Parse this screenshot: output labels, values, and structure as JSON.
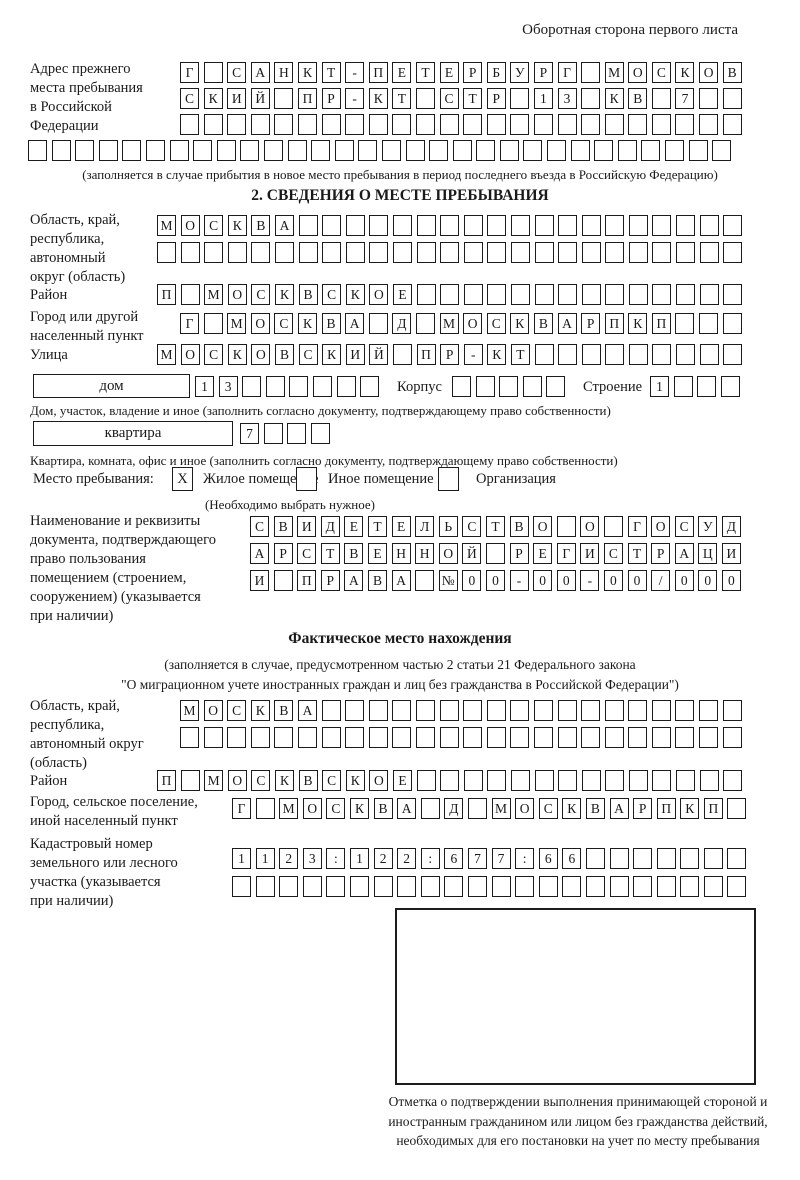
{
  "header": {
    "note": "Оборотная сторона первого листа"
  },
  "prev_address": {
    "label": "Адрес прежнего\nместа пребывания\nв Российской\nФедерации",
    "rows": [
      {
        "chars": "Г САНКТ-ПЕТЕРБУРГ МОСКОВ",
        "count": 24
      },
      {
        "chars": "СКИЙ ПР-КТ СТР 13 КВ 7",
        "count": 24
      },
      {
        "chars": "",
        "count": 24
      }
    ],
    "row_full": {
      "chars": "",
      "count": 30
    },
    "note": "(заполняется в случае прибытия в новое место пребывания в период последнего въезда в Российскую Федерацию)"
  },
  "section2": {
    "title": "2. СВЕДЕНИЯ О МЕСТЕ ПРЕБЫВАНИЯ",
    "oblast": {
      "label": "Область, край,\nреспублика,\nавтономный\nокруг (область)",
      "rows": [
        {
          "chars": "МОСКВА",
          "count": 25
        },
        {
          "chars": "",
          "count": 25
        }
      ]
    },
    "rayon": {
      "label": "Район",
      "row": {
        "chars": "П МОСКВСКОЕ",
        "count": 25
      }
    },
    "gorod": {
      "label": "Город или другой\nнаселенный пункт",
      "row": {
        "chars": "Г МОСКВА Д МОСКВАРПКП",
        "count": 24
      }
    },
    "ulitsa": {
      "label": "Улица",
      "row": {
        "chars": "МОСКОВСКИЙ ПР-КТ",
        "count": 25
      }
    },
    "dom": {
      "box_label": "дом",
      "cells": {
        "chars": "13",
        "count": 8
      },
      "korpus_label": "Корпус",
      "korpus_cells": {
        "chars": "",
        "count": 5
      },
      "stroenie_label": "Строение",
      "stroenie_cells": {
        "chars": "1",
        "count": 4
      },
      "note": "Дом, участок, владение и иное (заполнить согласно документу, подтверждающему право собственности)"
    },
    "kvartira": {
      "box_label": "квартира",
      "cells": {
        "chars": "7",
        "count": 4
      },
      "note": "Квартира, комната, офис и иное (заполнить согласно документу, подтверждающему право собственности)"
    },
    "place_type": {
      "label": "Место пребывания:",
      "options": [
        {
          "mark": "X",
          "label": "Жилое помещение"
        },
        {
          "mark": "",
          "label": "Иное помещение"
        },
        {
          "mark": "",
          "label": "Организация"
        }
      ],
      "note": "(Необходимо выбрать нужное)"
    },
    "document": {
      "label": "Наименование и реквизиты\nдокумента, подтверждающего\nправо пользования\nпомещением (строением,\nсооружением) (указывается\nпри наличии)",
      "rows": [
        {
          "chars": "СВИДЕТЕЛЬСТВО О ГОСУД",
          "count": 21
        },
        {
          "chars": "АРСТВЕННОЙ РЕГИСТРАЦИ",
          "count": 21
        },
        {
          "chars": "И ПРАВА №00-00-00/000",
          "count": 21
        }
      ]
    }
  },
  "actual": {
    "title": "Фактическое место нахождения",
    "note_line1": "(заполняется в случае, предусмотренном частью 2 статьи 21 Федерального закона",
    "note_line2": "\"О миграционном учете иностранных граждан и лиц без гражданства в Российской Федерации\")",
    "oblast": {
      "label": "Область, край,\nреспублика,\nавтономный округ\n(область)",
      "rows": [
        {
          "chars": "МОСКВА",
          "count": 24
        },
        {
          "chars": "",
          "count": 24
        }
      ]
    },
    "rayon": {
      "label": "Район",
      "row": {
        "chars": "П МОСКВСКОЕ",
        "count": 25
      }
    },
    "gorod": {
      "label": "Город, сельское поселение,\nиной населенный пункт",
      "row": {
        "chars": "Г МОСКВА Д МОСКВАРПКП",
        "count": 22
      }
    },
    "cadastre": {
      "label": "Кадастровый номер\nземельного или лесного\nучастка (указывается\nпри наличии)",
      "rows": [
        {
          "chars": "1123:122:677:66",
          "count": 22
        },
        {
          "chars": "",
          "count": 22
        }
      ]
    },
    "stamp_caption": "Отметка о подтверждении выполнения принимающей стороной и иностранным гражданином или лицом без гражданства действий, необходимых для его постановки на учет по месту пребывания"
  }
}
